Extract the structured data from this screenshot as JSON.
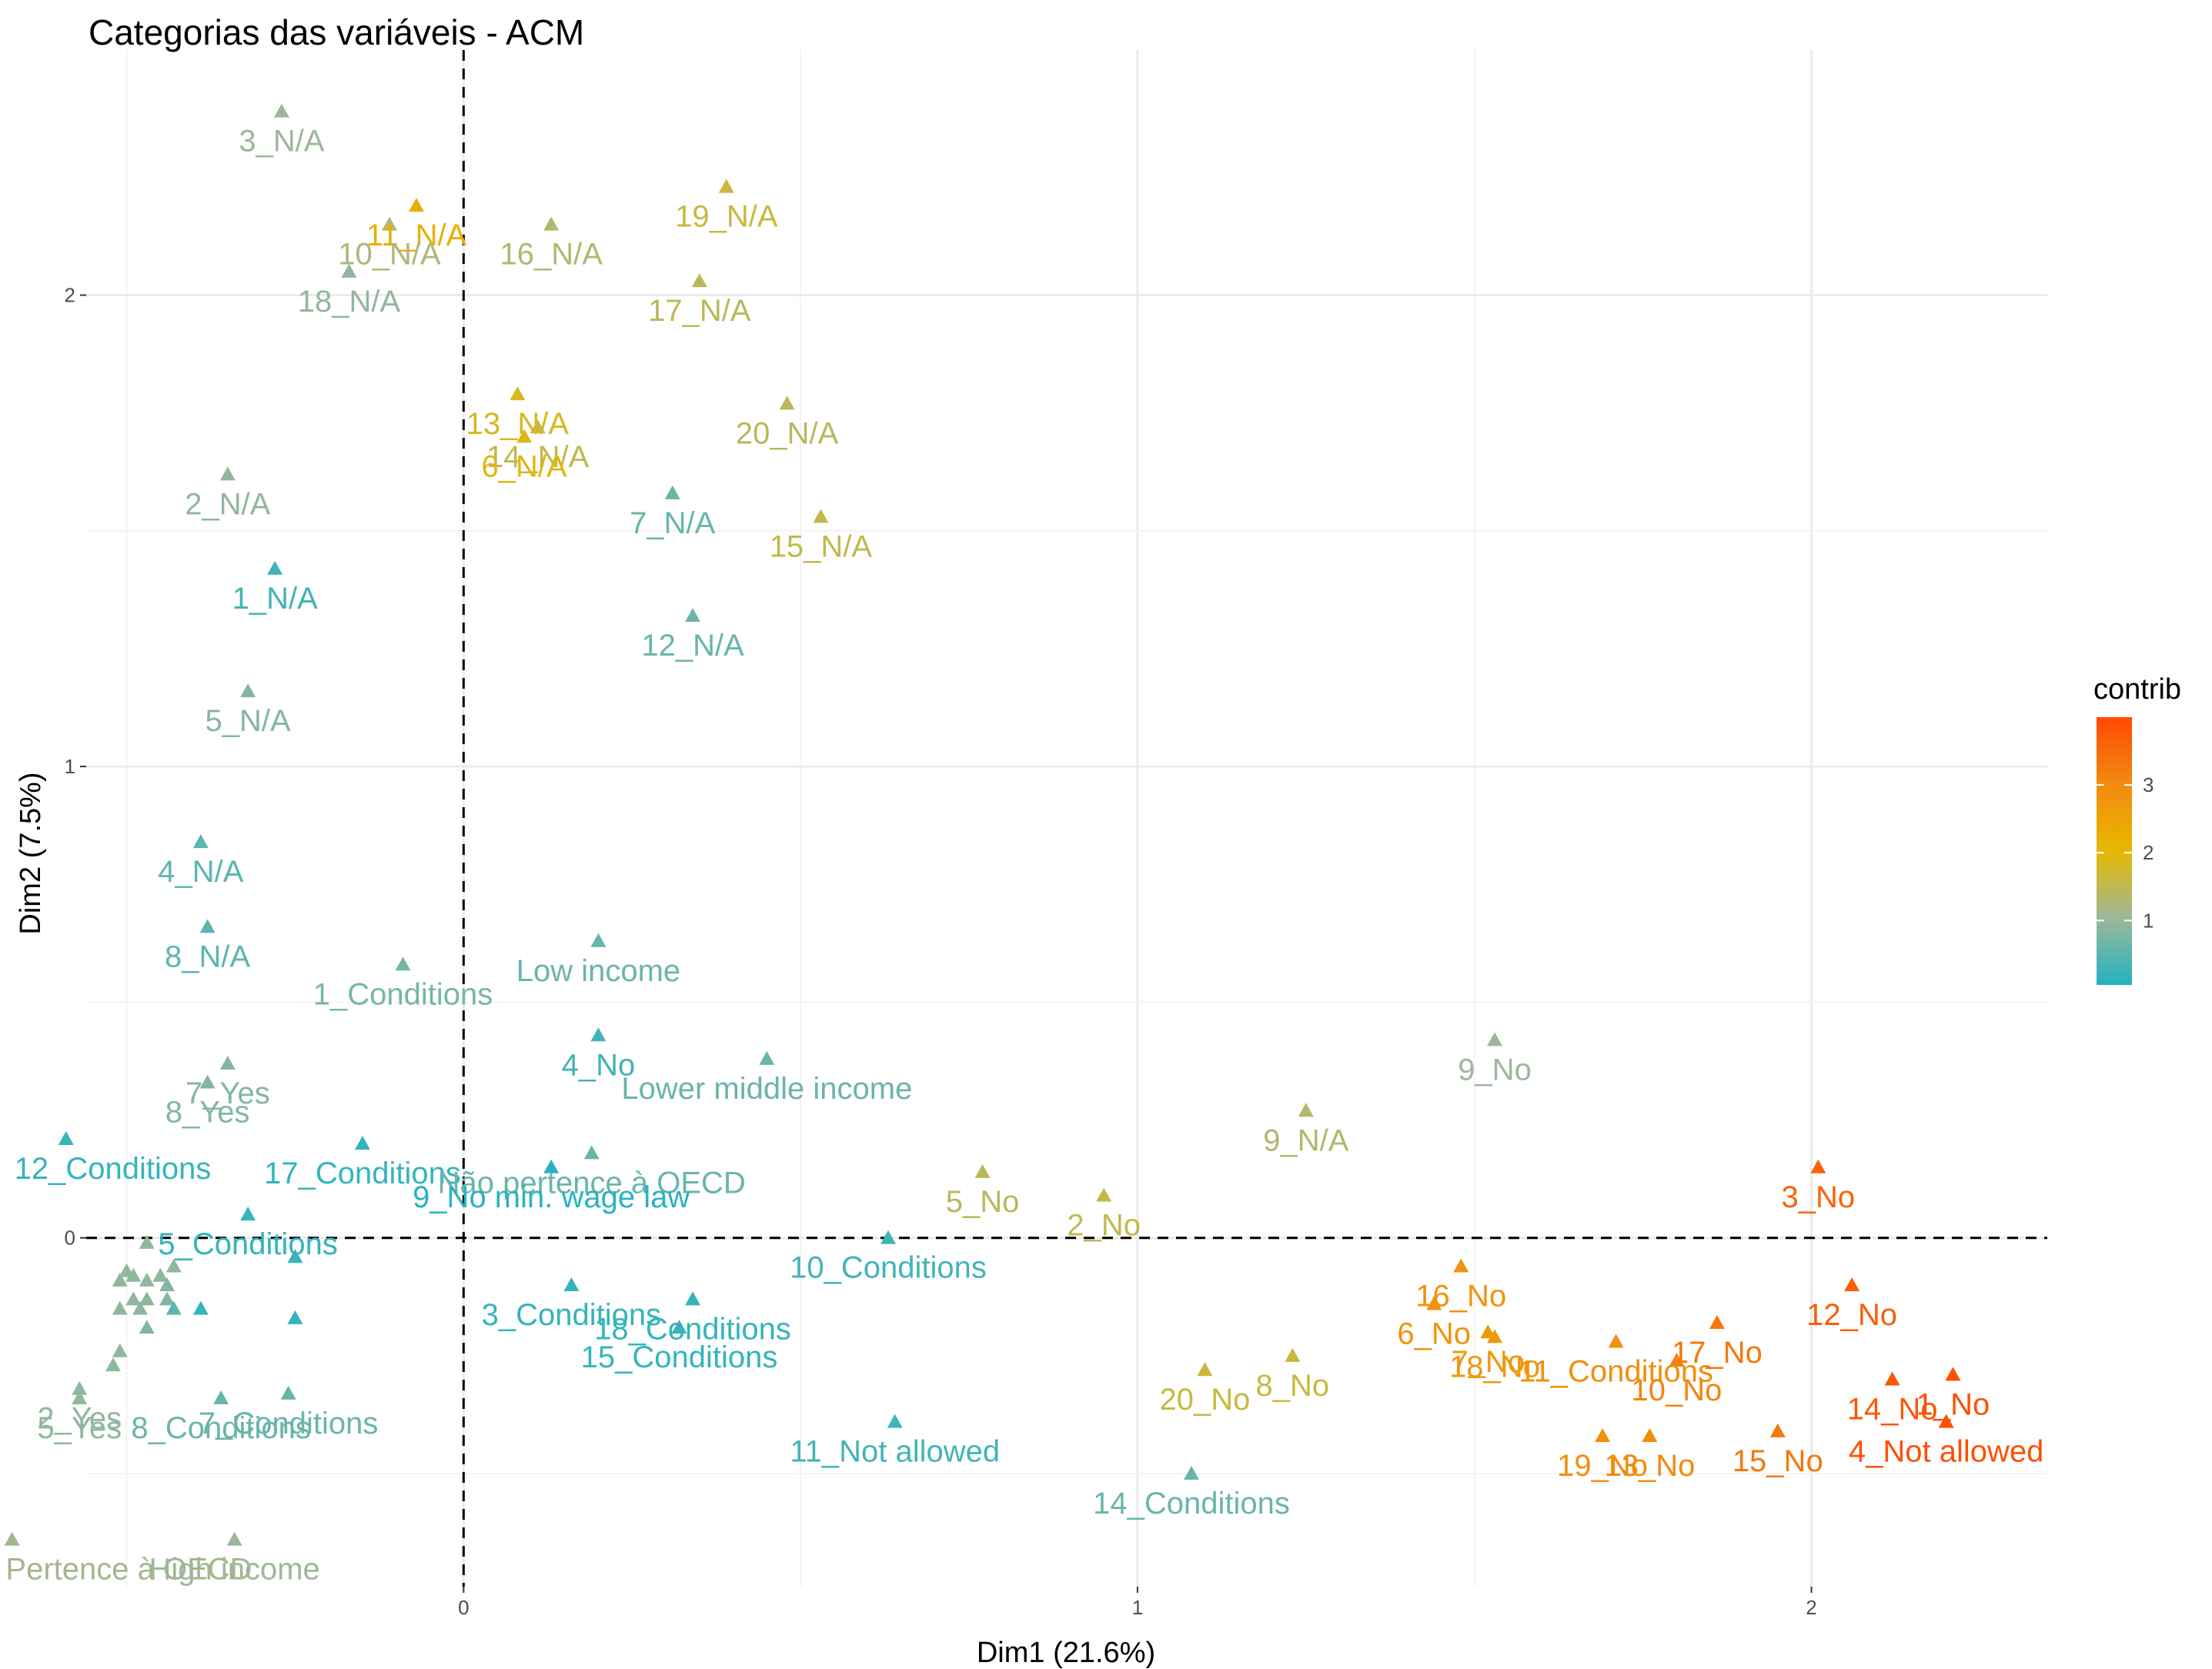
{
  "chart_data": {
    "type": "scatter",
    "title": "Categorias das variáveis - ACM",
    "xlabel": "Dim1 (21.6%)",
    "ylabel": "Dim2 (7.5%)",
    "xlim": [
      -0.56,
      2.35
    ],
    "ylim": [
      -0.74,
      2.52
    ],
    "x_ticks": [
      0,
      1,
      2
    ],
    "y_ticks": [
      0,
      1,
      2
    ],
    "grid": true,
    "reference_lines": {
      "x": 0,
      "y": 0,
      "style": "dashed"
    },
    "legend": {
      "title": "contrib",
      "position": "right",
      "range": [
        0.05,
        4.0
      ],
      "ticks": [
        1,
        2,
        3
      ],
      "colors": [
        "#21b3c2",
        "#e6b800",
        "#ff4a00"
      ]
    },
    "points": [
      {
        "label": "3_N/A",
        "x": -0.27,
        "y": 2.39,
        "contrib": 1.0
      },
      {
        "label": "11_N/A",
        "x": -0.07,
        "y": 2.19,
        "contrib": 2.2
      },
      {
        "label": "10_N/A",
        "x": -0.11,
        "y": 2.15,
        "contrib": 1.2
      },
      {
        "label": "18_N/A",
        "x": -0.17,
        "y": 2.05,
        "contrib": 0.9
      },
      {
        "label": "19_N/A",
        "x": 0.39,
        "y": 2.23,
        "contrib": 1.6
      },
      {
        "label": "16_N/A",
        "x": 0.13,
        "y": 2.15,
        "contrib": 1.3
      },
      {
        "label": "17_N/A",
        "x": 0.35,
        "y": 2.03,
        "contrib": 1.4
      },
      {
        "label": "13_N/A",
        "x": 0.08,
        "y": 1.79,
        "contrib": 1.8
      },
      {
        "label": "14_N/A",
        "x": 0.11,
        "y": 1.72,
        "contrib": 1.5
      },
      {
        "label": "6_N/A",
        "x": 0.09,
        "y": 1.7,
        "contrib": 1.9
      },
      {
        "label": "20_N/A",
        "x": 0.48,
        "y": 1.77,
        "contrib": 1.4
      },
      {
        "label": "2_N/A",
        "x": -0.35,
        "y": 1.62,
        "contrib": 0.9
      },
      {
        "label": "7_N/A",
        "x": 0.31,
        "y": 1.58,
        "contrib": 0.6
      },
      {
        "label": "15_N/A",
        "x": 0.53,
        "y": 1.53,
        "contrib": 1.5
      },
      {
        "label": "1_N/A",
        "x": -0.28,
        "y": 1.42,
        "contrib": 0.3
      },
      {
        "label": "12_N/A",
        "x": 0.34,
        "y": 1.32,
        "contrib": 0.6
      },
      {
        "label": "5_N/A",
        "x": -0.32,
        "y": 1.16,
        "contrib": 0.8
      },
      {
        "label": "4_N/A",
        "x": -0.39,
        "y": 0.84,
        "contrib": 0.5
      },
      {
        "label": "8_N/A",
        "x": -0.38,
        "y": 0.66,
        "contrib": 0.5
      },
      {
        "label": "Low income",
        "x": 0.2,
        "y": 0.63,
        "contrib": 0.6
      },
      {
        "label": "1_Conditions",
        "x": -0.09,
        "y": 0.58,
        "contrib": 0.7
      },
      {
        "label": "4_No",
        "x": 0.2,
        "y": 0.43,
        "contrib": 0.3
      },
      {
        "label": "7_Yes",
        "x": -0.35,
        "y": 0.37,
        "contrib": 0.8
      },
      {
        "label": "8_Yes",
        "x": -0.38,
        "y": 0.33,
        "contrib": 0.8
      },
      {
        "label": "Lower middle income",
        "x": 0.45,
        "y": 0.38,
        "contrib": 0.6
      },
      {
        "label": "9_No",
        "x": 1.53,
        "y": 0.42,
        "contrib": 1.0
      },
      {
        "label": "9_N/A",
        "x": 1.25,
        "y": 0.27,
        "contrib": 1.3
      },
      {
        "label": "12_Conditions",
        "x": -0.59,
        "y": 0.21,
        "contrib": 0.2
      },
      {
        "label": "17_Conditions",
        "x": -0.15,
        "y": 0.2,
        "contrib": 0.2
      },
      {
        "label": "Não pertence à OECD",
        "x": 0.19,
        "y": 0.18,
        "contrib": 0.6
      },
      {
        "label": "9_No min. wage law",
        "x": 0.13,
        "y": 0.15,
        "contrib": 0.1
      },
      {
        "label": "5_Conditions",
        "x": -0.32,
        "y": 0.05,
        "contrib": 0.2
      },
      {
        "label": "5_No",
        "x": 0.77,
        "y": 0.14,
        "contrib": 1.4
      },
      {
        "label": "2_No",
        "x": 0.95,
        "y": 0.09,
        "contrib": 1.5
      },
      {
        "label": "10_Conditions",
        "x": 0.63,
        "y": 0.0,
        "contrib": 0.3
      },
      {
        "label": "3_No",
        "x": 2.01,
        "y": 0.15,
        "contrib": 3.6
      },
      {
        "label": "3_Conditions",
        "x": 0.16,
        "y": -0.1,
        "contrib": 0.2
      },
      {
        "label": "18_Conditions",
        "x": 0.34,
        "y": -0.13,
        "contrib": 0.2
      },
      {
        "label": "15_Conditions",
        "x": 0.32,
        "y": -0.19,
        "contrib": 0.2
      },
      {
        "label": "16_No",
        "x": 1.48,
        "y": -0.06,
        "contrib": 2.8
      },
      {
        "label": "6_No",
        "x": 1.44,
        "y": -0.14,
        "contrib": 2.8
      },
      {
        "label": "7_No",
        "x": 1.52,
        "y": -0.2,
        "contrib": 2.7
      },
      {
        "label": "11_Conditions",
        "x": 1.71,
        "y": -0.22,
        "contrib": 2.9
      },
      {
        "label": "17_No",
        "x": 1.86,
        "y": -0.18,
        "contrib": 3.3
      },
      {
        "label": "12_No",
        "x": 2.06,
        "y": -0.1,
        "contrib": 3.7
      },
      {
        "label": "8_No",
        "x": 1.23,
        "y": -0.25,
        "contrib": 1.6
      },
      {
        "label": "18_No",
        "x": 1.53,
        "y": -0.21,
        "contrib": 2.7
      },
      {
        "label": "10_No",
        "x": 1.8,
        "y": -0.26,
        "contrib": 3.1
      },
      {
        "label": "14_No",
        "x": 2.12,
        "y": -0.3,
        "contrib": 3.8
      },
      {
        "label": "1_No",
        "x": 2.21,
        "y": -0.29,
        "contrib": 3.9
      },
      {
        "label": "20_No",
        "x": 1.1,
        "y": -0.28,
        "contrib": 1.6
      },
      {
        "label": "11_Not allowed",
        "x": 0.64,
        "y": -0.39,
        "contrib": 0.3
      },
      {
        "label": "19_No",
        "x": 1.69,
        "y": -0.42,
        "contrib": 2.9
      },
      {
        "label": "13_No",
        "x": 1.76,
        "y": -0.42,
        "contrib": 3.0
      },
      {
        "label": "15_No",
        "x": 1.95,
        "y": -0.41,
        "contrib": 3.3
      },
      {
        "label": "4_Not allowed",
        "x": 2.2,
        "y": -0.39,
        "contrib": 3.9
      },
      {
        "label": "14_Conditions",
        "x": 1.08,
        "y": -0.5,
        "contrib": 0.6
      },
      {
        "label": "2_Yes",
        "x": -0.57,
        "y": -0.32,
        "contrib": 0.9
      },
      {
        "label": "5_Yes",
        "x": -0.57,
        "y": -0.34,
        "contrib": 0.9
      },
      {
        "label": "8_Conditions",
        "x": -0.36,
        "y": -0.34,
        "contrib": 0.6
      },
      {
        "label": "7_Conditions",
        "x": -0.26,
        "y": -0.33,
        "contrib": 0.6
      },
      {
        "label": "Pertence à OECD",
        "x": -0.67,
        "y": -0.64,
        "contrib": 1.1
      },
      {
        "label": "High income",
        "x": -0.34,
        "y": -0.64,
        "contrib": 1.0
      },
      {
        "label": "",
        "x": -0.47,
        "y": -0.01,
        "contrib": 0.9
      },
      {
        "label": "",
        "x": -0.5,
        "y": -0.07,
        "contrib": 0.9
      },
      {
        "label": "",
        "x": -0.49,
        "y": -0.08,
        "contrib": 0.9
      },
      {
        "label": "",
        "x": -0.51,
        "y": -0.09,
        "contrib": 0.9
      },
      {
        "label": "",
        "x": -0.47,
        "y": -0.09,
        "contrib": 0.9
      },
      {
        "label": "",
        "x": -0.45,
        "y": -0.08,
        "contrib": 0.9
      },
      {
        "label": "",
        "x": -0.43,
        "y": -0.06,
        "contrib": 0.9
      },
      {
        "label": "",
        "x": -0.44,
        "y": -0.1,
        "contrib": 0.8
      },
      {
        "label": "",
        "x": -0.47,
        "y": -0.13,
        "contrib": 0.9
      },
      {
        "label": "",
        "x": -0.49,
        "y": -0.13,
        "contrib": 0.9
      },
      {
        "label": "",
        "x": -0.51,
        "y": -0.15,
        "contrib": 0.9
      },
      {
        "label": "",
        "x": -0.48,
        "y": -0.15,
        "contrib": 0.9
      },
      {
        "label": "",
        "x": -0.44,
        "y": -0.13,
        "contrib": 0.8
      },
      {
        "label": "",
        "x": -0.43,
        "y": -0.15,
        "contrib": 0.5
      },
      {
        "label": "",
        "x": -0.39,
        "y": -0.15,
        "contrib": 0.2
      },
      {
        "label": "",
        "x": -0.25,
        "y": -0.04,
        "contrib": 0.2
      },
      {
        "label": "",
        "x": -0.25,
        "y": -0.17,
        "contrib": 0.2
      },
      {
        "label": "",
        "x": -0.47,
        "y": -0.19,
        "contrib": 0.8
      },
      {
        "label": "",
        "x": -0.51,
        "y": -0.24,
        "contrib": 0.9
      },
      {
        "label": "",
        "x": -0.52,
        "y": -0.27,
        "contrib": 0.9
      }
    ]
  }
}
